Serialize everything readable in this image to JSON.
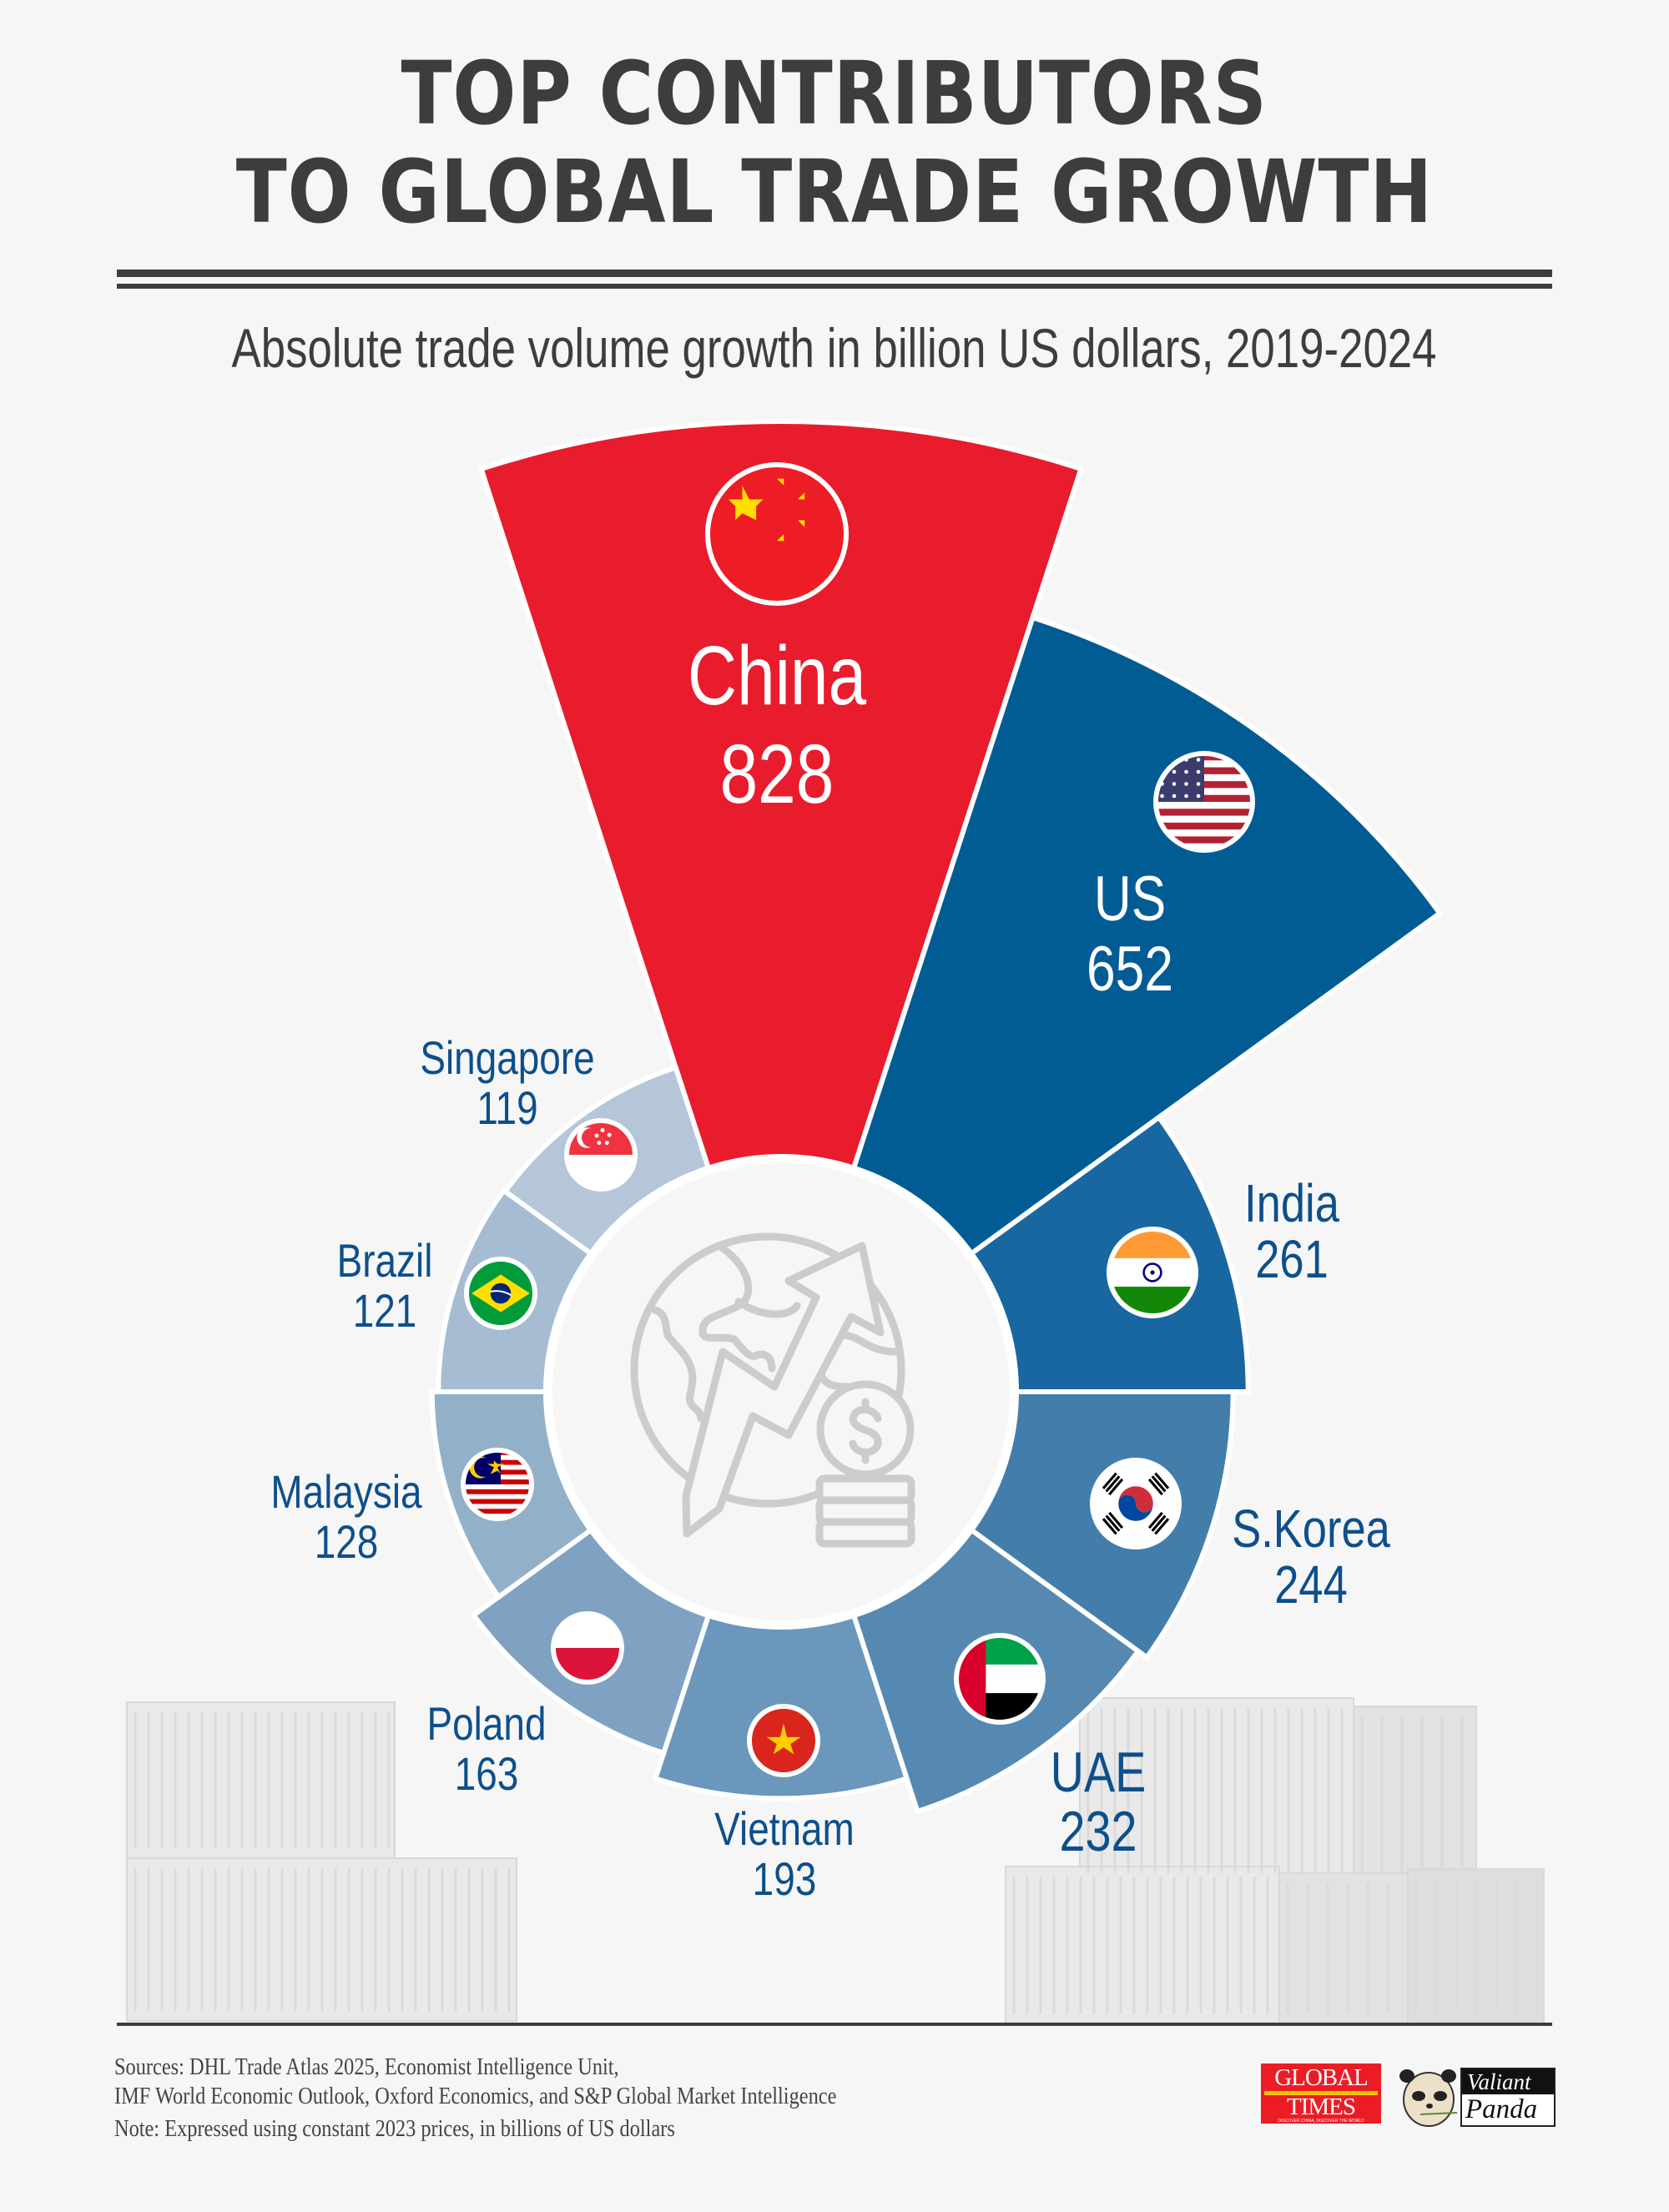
{
  "header": {
    "title_line1": "TOP CONTRIBUTORS",
    "title_line2": "TO GLOBAL TRADE GROWTH",
    "subtitle": "Absolute trade volume growth in billion US dollars, 2019-2024"
  },
  "chart_data": {
    "type": "bar",
    "subtype": "radial bar / nightingale rose",
    "title": "Top Contributors to Global Trade Growth",
    "subtitle": "Absolute trade volume growth in billion US dollars, 2019-2024",
    "unit": "billion US dollars",
    "categories": [
      "China",
      "US",
      "India",
      "S.Korea",
      "UAE",
      "Vietnam",
      "Poland",
      "Malaysia",
      "Brazil",
      "Singapore"
    ],
    "values": [
      828,
      652,
      261,
      244,
      232,
      193,
      163,
      128,
      121,
      119
    ],
    "colors": [
      "#e81c2d",
      "#025c94",
      "#1967a0",
      "#427ea9",
      "#5589b2",
      "#6a97bb",
      "#7fa2c2",
      "#93b0c9",
      "#a5bcd2",
      "#b4c6d8"
    ],
    "flags": [
      "china",
      "us",
      "india",
      "skorea",
      "uae",
      "vietnam",
      "poland",
      "malaysia",
      "brazil",
      "singapore"
    ]
  },
  "labels": [
    {
      "name": "China",
      "value": "828"
    },
    {
      "name": "US",
      "value": "652"
    },
    {
      "name": "India",
      "value": "261"
    },
    {
      "name": "S.Korea",
      "value": "244"
    },
    {
      "name": "UAE",
      "value": "232"
    },
    {
      "name": "Vietnam",
      "value": "193"
    },
    {
      "name": "Poland",
      "value": "163"
    },
    {
      "name": "Malaysia",
      "value": "128"
    },
    {
      "name": "Brazil",
      "value": "121"
    },
    {
      "name": "Singapore",
      "value": "119"
    }
  ],
  "center_icon": "globe-growth-arrow-dollar-coins-icon",
  "footer": {
    "sources_line1": "Sources: DHL Trade Atlas 2025, Economist Intelligence Unit,",
    "sources_line2": "IMF World Economic Outlook, Oxford Economics, and S&P Global Market Intelligence",
    "note": "Note: Expressed using constant 2023 prices, in billions of US dollars",
    "logo1_line1": "GLOBAL",
    "logo1_line2": "TIMES",
    "logo1_tagline": "DISCOVER CHINA, DISCOVER THE WORLD",
    "logo2_line1": "Valiant",
    "logo2_line2": "Panda"
  },
  "style": {
    "label_color": "#0d4f8b",
    "title_color": "#3d3d3d",
    "background": "#f6f6f6",
    "icon_color": "#cccccc"
  }
}
